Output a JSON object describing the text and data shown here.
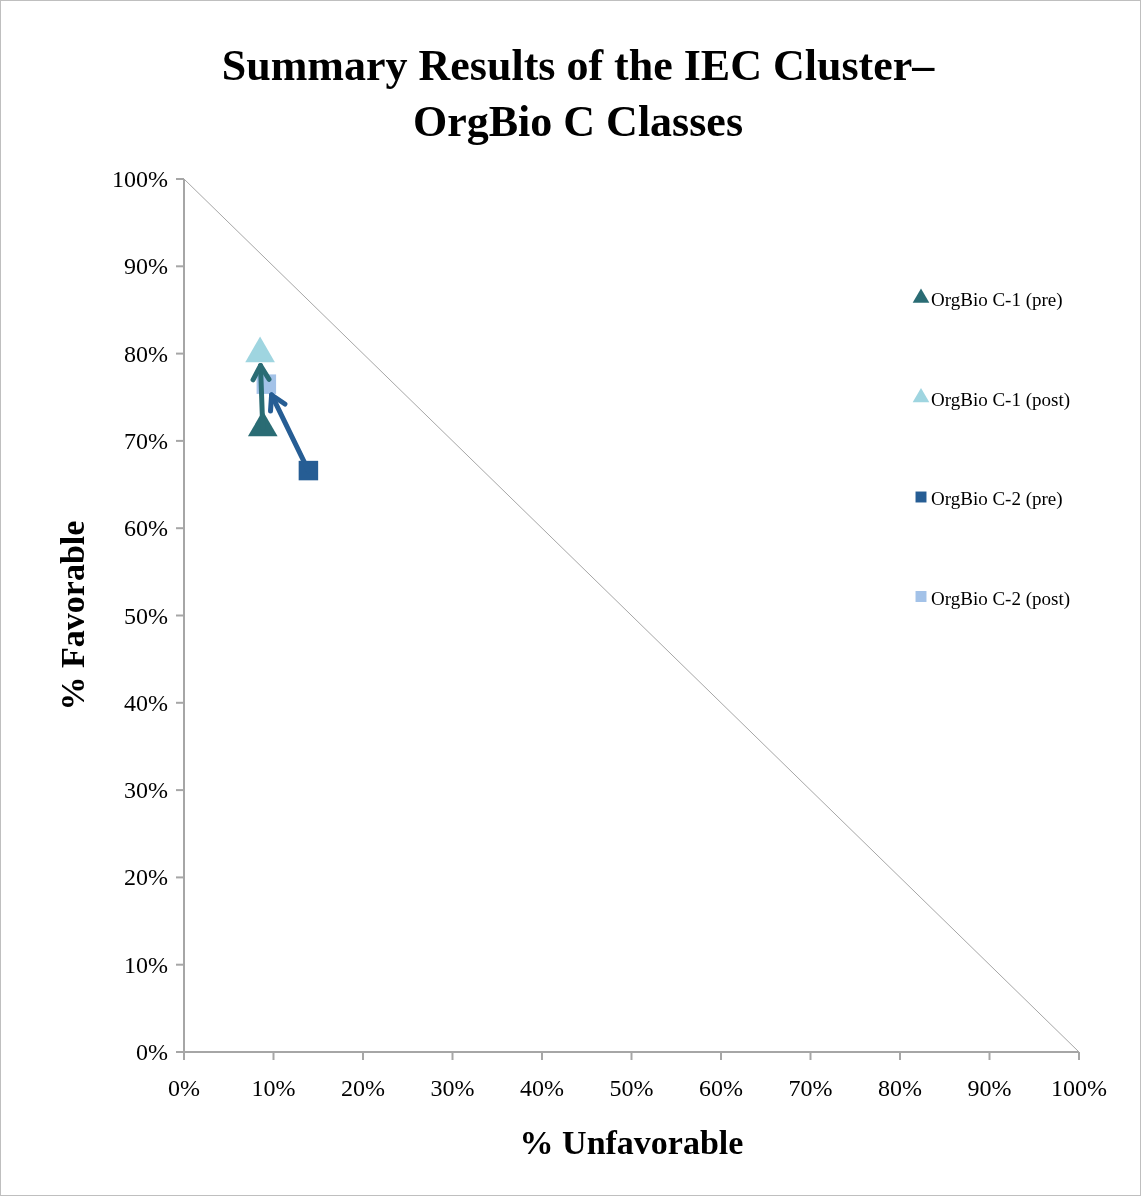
{
  "chart_data": {
    "type": "scatter",
    "title": "Summary Results of the IEC Cluster– OrgBio C Classes",
    "xlabel": "% Unfavorable",
    "ylabel": "% Favorable",
    "xlim": [
      0,
      100
    ],
    "ylim": [
      0,
      100
    ],
    "xticks": [
      {
        "value": 0,
        "label": "0%"
      },
      {
        "value": 10,
        "label": "10%"
      },
      {
        "value": 20,
        "label": "20%"
      },
      {
        "value": 30,
        "label": "30%"
      },
      {
        "value": 40,
        "label": "40%"
      },
      {
        "value": 50,
        "label": "50%"
      },
      {
        "value": 60,
        "label": "60%"
      },
      {
        "value": 70,
        "label": "70%"
      },
      {
        "value": 80,
        "label": "80%"
      },
      {
        "value": 90,
        "label": "90%"
      },
      {
        "value": 100,
        "label": "100%"
      }
    ],
    "yticks": [
      {
        "value": 0,
        "label": "0%"
      },
      {
        "value": 10,
        "label": "10%"
      },
      {
        "value": 20,
        "label": "20%"
      },
      {
        "value": 30,
        "label": "30%"
      },
      {
        "value": 40,
        "label": "40%"
      },
      {
        "value": 50,
        "label": "50%"
      },
      {
        "value": 60,
        "label": "60%"
      },
      {
        "value": 70,
        "label": "70%"
      },
      {
        "value": 80,
        "label": "80%"
      },
      {
        "value": 90,
        "label": "90%"
      },
      {
        "value": 100,
        "label": "100%"
      }
    ],
    "legend": "right",
    "series": [
      {
        "name": "OrgBio C-1 (pre)",
        "color": "#2a6c74",
        "marker": "triangle",
        "x": [
          8.8
        ],
        "values": [
          71.5
        ]
      },
      {
        "name": "OrgBio C-1 (post)",
        "color": "#9fd5e0",
        "marker": "triangle",
        "x": [
          8.5
        ],
        "values": [
          80
        ]
      },
      {
        "name": "OrgBio C-2 (pre)",
        "color": "#265d94",
        "marker": "square",
        "x": [
          13.9
        ],
        "values": [
          66.6
        ]
      },
      {
        "name": "OrgBio C-2 (post)",
        "color": "#a3c2e8",
        "marker": "square",
        "x": [
          9.2
        ],
        "values": [
          76.5
        ]
      },
      {
        "type": "line",
        "color": "#a6a6a6",
        "marker": "none",
        "x": [
          0,
          100
        ],
        "values": [
          100,
          0
        ]
      }
    ]
  }
}
